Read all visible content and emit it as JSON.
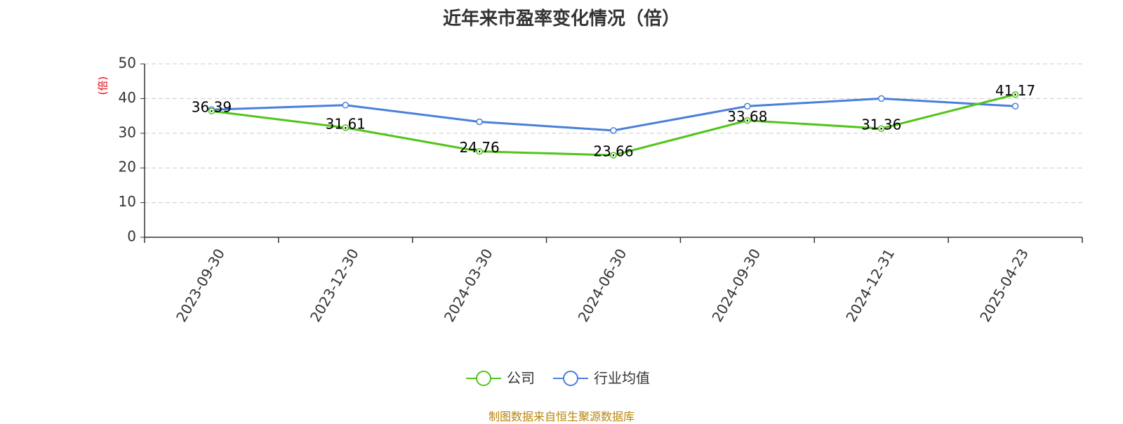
{
  "colors": {
    "company": "#52c41a",
    "industry": "#4a7fda",
    "ylabel": "#e8000b",
    "grid": "#cccccc",
    "axis": "#333333",
    "source": "#b8860b"
  },
  "source_text": "制图数据来自恒生聚源数据库",
  "chart_data": {
    "type": "line",
    "title": "近年来市盈率变化情况（倍）",
    "ylabel": "(倍)",
    "xlabel": "",
    "categories": [
      "2023-09-30",
      "2023-12-30",
      "2024-03-30",
      "2024-06-30",
      "2024-09-30",
      "2024-12-31",
      "2025-04-23"
    ],
    "ylim": [
      0,
      50
    ],
    "yticks": [
      0,
      10,
      20,
      30,
      40,
      50
    ],
    "grid": true,
    "legend_position": "bottom-center",
    "series": [
      {
        "name": "公司",
        "key": "company",
        "values": [
          36.39,
          31.61,
          24.76,
          23.66,
          33.68,
          31.36,
          41.17
        ],
        "labels": true
      },
      {
        "name": "行业均值",
        "key": "industry",
        "values": [
          36.8,
          38.1,
          33.3,
          30.8,
          37.8,
          40.0,
          37.8
        ],
        "labels": false
      }
    ]
  }
}
